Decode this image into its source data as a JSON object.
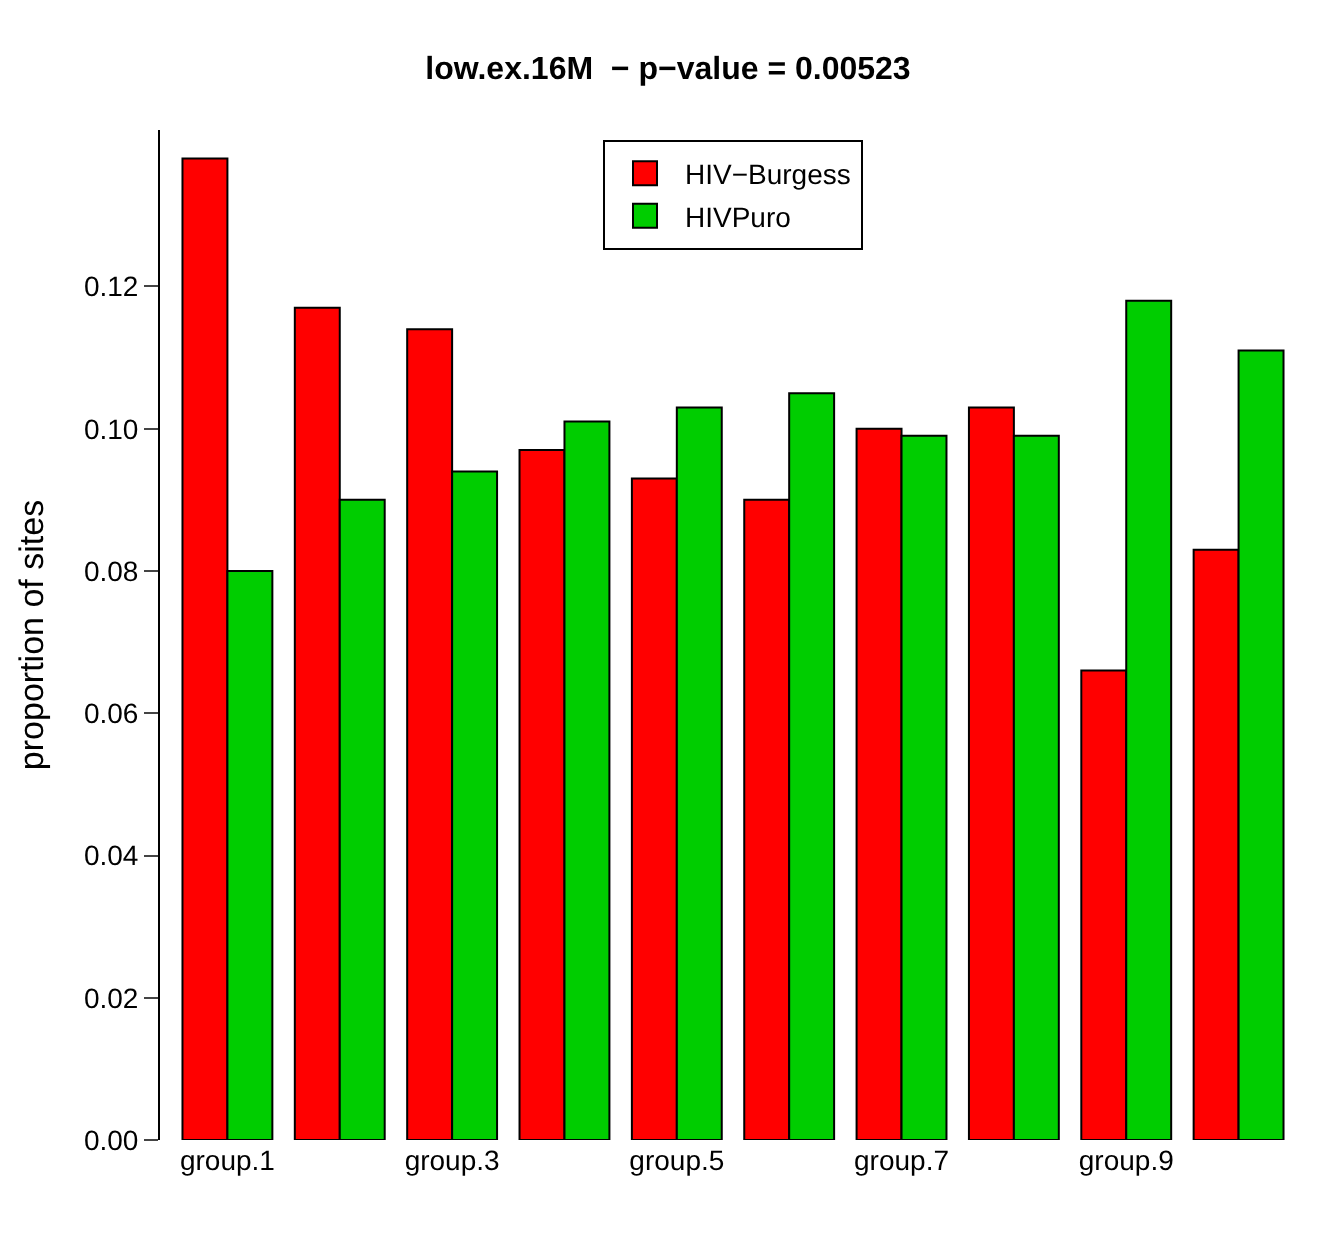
{
  "chart_data": {
    "type": "bar",
    "title": "low.ex.16M  − p−value = 0.00523",
    "ylabel": "proportion of sites",
    "categories": [
      "group.1",
      null,
      "group.3",
      null,
      "group.5",
      null,
      "group.7",
      null,
      "group.9",
      null
    ],
    "series": [
      {
        "name": "HIV−Burgess",
        "color": "#ff0000",
        "values": [
          0.138,
          0.117,
          0.114,
          0.097,
          0.093,
          0.09,
          0.1,
          0.103,
          0.066,
          0.083
        ]
      },
      {
        "name": "HIVPuro",
        "color": "#00cd00",
        "values": [
          0.08,
          0.09,
          0.094,
          0.101,
          0.103,
          0.105,
          0.099,
          0.099,
          0.118,
          0.111
        ]
      }
    ],
    "ylim": [
      0,
      0.142
    ],
    "yticks": [
      {
        "value": 0,
        "label": "0.00"
      },
      {
        "value": 0.02,
        "label": "0.02"
      },
      {
        "value": 0.04,
        "label": "0.04"
      },
      {
        "value": 0.06,
        "label": "0.06"
      },
      {
        "value": 0.08,
        "label": "0.08"
      },
      {
        "value": 0.1,
        "label": "0.10"
      },
      {
        "value": 0.12,
        "label": "0.12"
      }
    ],
    "legend": "top"
  }
}
